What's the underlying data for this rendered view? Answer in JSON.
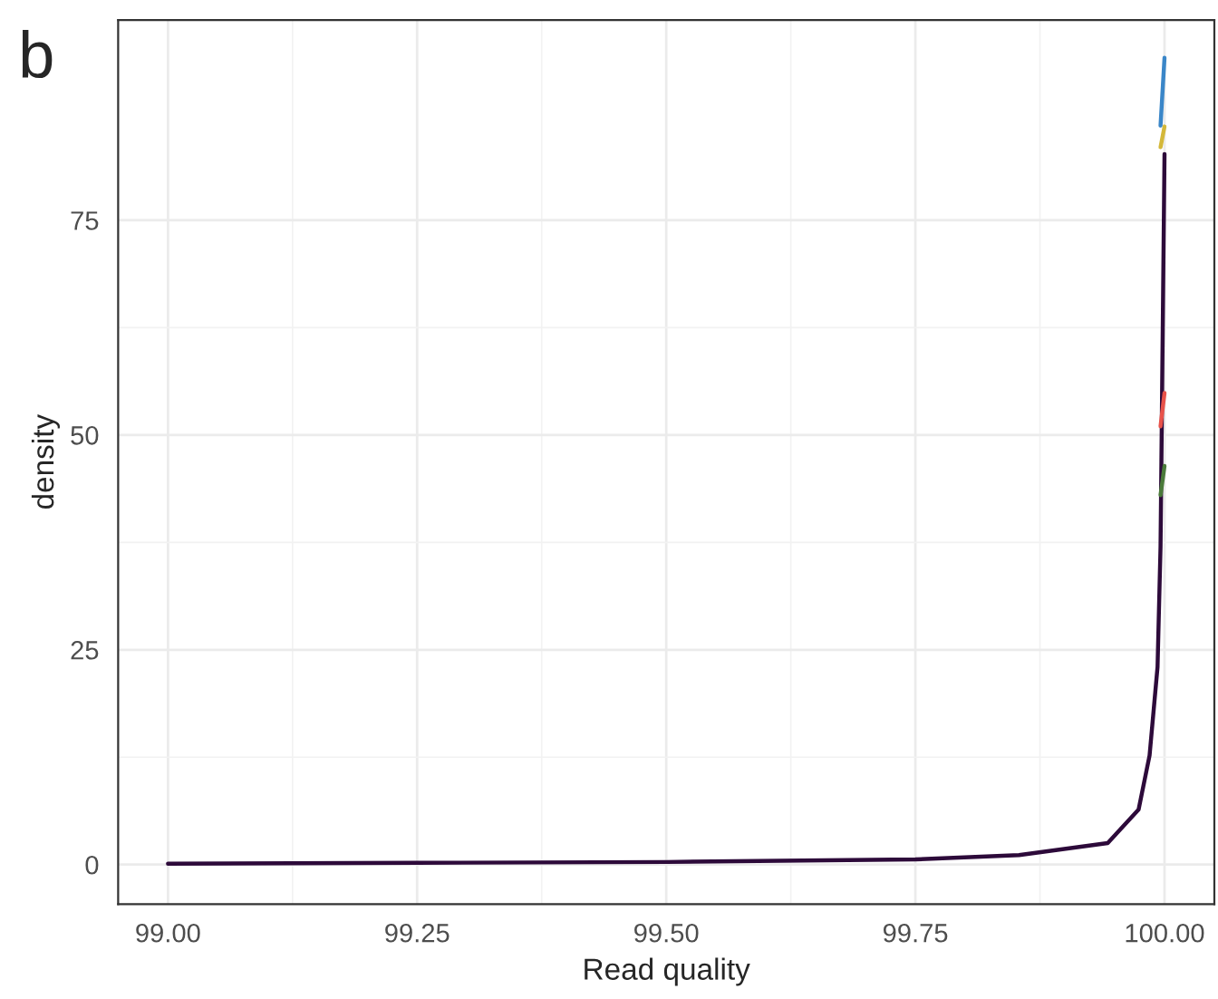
{
  "chart_data": {
    "type": "line",
    "title": "b",
    "xlabel": "Read quality",
    "ylabel": "density",
    "xlim": [
      98.95,
      100.05
    ],
    "xticks": [
      {
        "value": 99.0,
        "label": "99.00"
      },
      {
        "value": 99.25,
        "label": "99.25"
      },
      {
        "value": 99.5,
        "label": "99.50"
      },
      {
        "value": 99.75,
        "label": "99.75"
      },
      {
        "value": 100.0,
        "label": "100.00"
      }
    ],
    "ylim": [
      -4.6,
      98.3
    ],
    "yticks": [
      0,
      25,
      50,
      75
    ],
    "grid": true,
    "legend": false,
    "line_style": "solid",
    "marker": "none",
    "x": [
      99.0,
      99.25,
      99.5,
      99.75,
      99.854,
      99.943,
      99.974,
      99.985,
      99.993,
      99.996,
      100.0
    ],
    "series": [
      {
        "color": "#2d0a3a",
        "values": [
          0.1,
          0.2,
          0.3,
          0.6,
          1.1,
          2.5,
          6.4,
          12.7,
          23,
          37,
          82.7
        ]
      },
      {
        "color": "#3a86c8",
        "values": [
          null,
          null,
          null,
          null,
          null,
          null,
          null,
          null,
          null,
          86,
          93.9
        ]
      },
      {
        "color": "#d4b83a",
        "values": [
          null,
          null,
          null,
          null,
          null,
          null,
          null,
          null,
          null,
          83.5,
          85.9
        ]
      },
      {
        "color": "#e8524a",
        "values": [
          null,
          null,
          null,
          null,
          null,
          null,
          null,
          null,
          null,
          51,
          54.9
        ]
      },
      {
        "color": "#4a7a3a",
        "values": [
          null,
          null,
          null,
          null,
          null,
          null,
          null,
          null,
          null,
          43,
          46.4
        ]
      }
    ]
  }
}
